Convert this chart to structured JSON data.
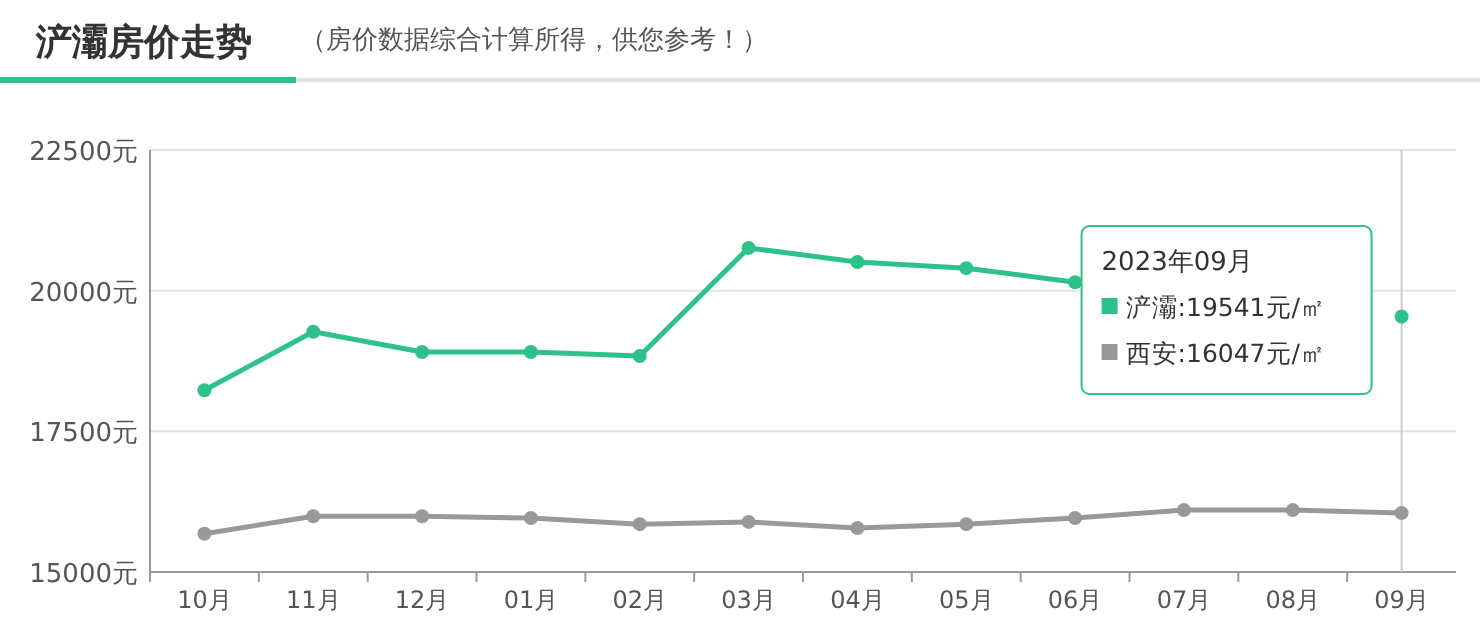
{
  "chart_data": {
    "type": "line",
    "title": "浐灞房价走势",
    "subtitle": "（房价数据综合计算所得，供您参考！）",
    "categories": [
      "10月",
      "11月",
      "12月",
      "01月",
      "02月",
      "03月",
      "04月",
      "05月",
      "06月",
      "07月",
      "08月",
      "09月"
    ],
    "series": [
      {
        "name": "浐灞:19541元/㎡",
        "color": "#2ec28b",
        "values": [
          18230,
          19270,
          18910,
          18910,
          18840,
          20760,
          20510,
          20400,
          20150,
          null,
          null,
          19541
        ]
      },
      {
        "name": "西安:16047元/㎡",
        "color": "#999999",
        "values": [
          15680,
          15990,
          15990,
          15960,
          15850,
          15890,
          15780,
          15850,
          15960,
          16100,
          16100,
          16047
        ]
      }
    ],
    "ylim": [
      15000,
      22500
    ],
    "yticks": [
      {
        "value": 15000,
        "label": "15000元"
      },
      {
        "value": 17500,
        "label": "17500元"
      },
      {
        "value": 20000,
        "label": "20000元"
      },
      {
        "value": 22500,
        "label": "22500元"
      }
    ],
    "grid": "y",
    "marker": "circle",
    "line_style": "solid",
    "legend": "top right",
    "legend_title": "2023年09月",
    "ref_lines": [
      {
        "axis": "x",
        "value": "09月",
        "color": "#cccccc"
      }
    ]
  }
}
